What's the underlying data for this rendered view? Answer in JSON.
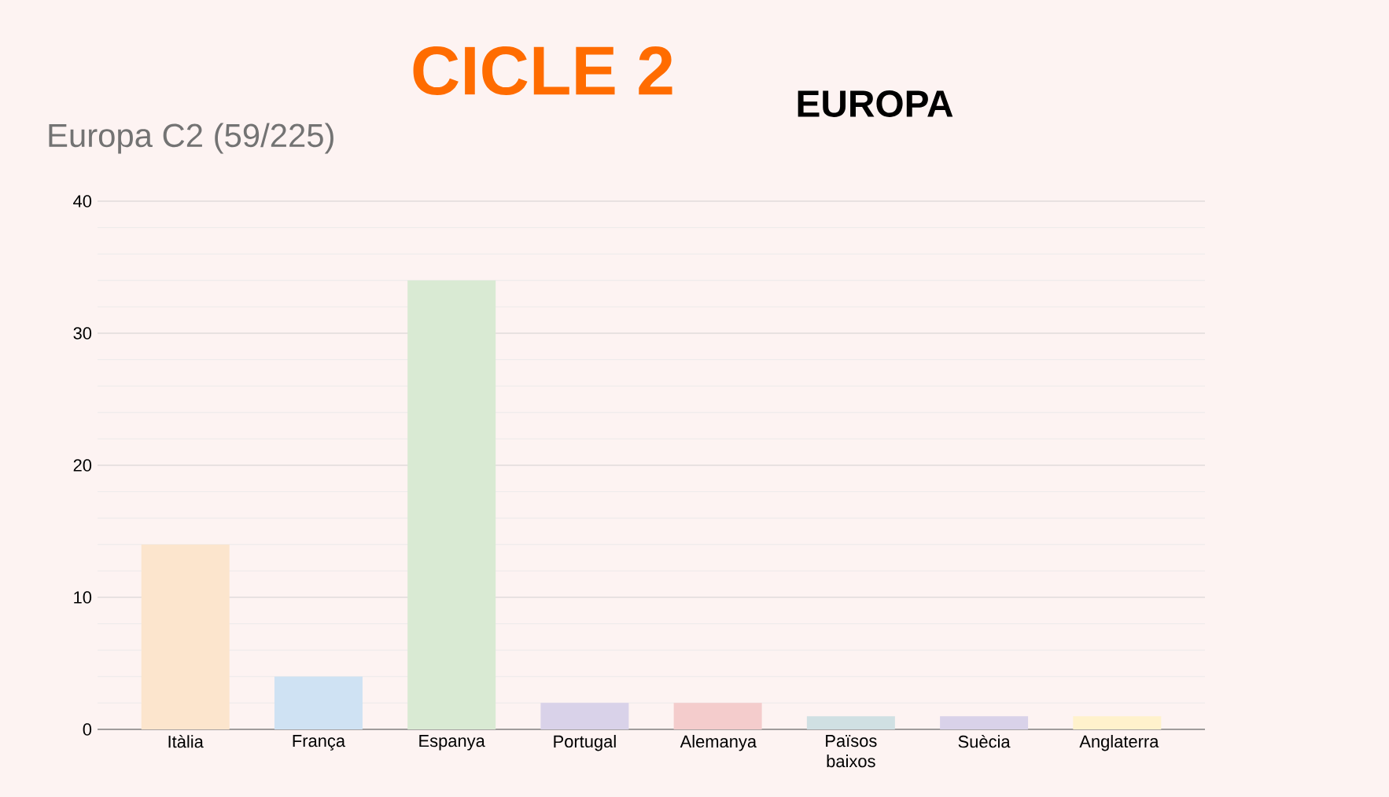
{
  "chart_data": {
    "type": "bar",
    "title": "Europa C2 (59/225)",
    "annotations": [
      "CICLE 2",
      "EUROPA"
    ],
    "categories": [
      "Itàlia",
      "França",
      "Espanya",
      "Portugal",
      "Alemanya",
      "Països baixos",
      "Suècia",
      "Anglaterra"
    ],
    "values": [
      14,
      4,
      34,
      2,
      2,
      1,
      1,
      1
    ],
    "colors": [
      "#fce5cd",
      "#cfe2f3",
      "#d9ead3",
      "#d9d2e9",
      "#f4cccc",
      "#d0e0e3",
      "#d9d2e9",
      "#fff2cc"
    ],
    "ylim": [
      0,
      40
    ],
    "yticks": [
      0,
      10,
      20,
      30,
      40
    ],
    "grid": "y"
  }
}
